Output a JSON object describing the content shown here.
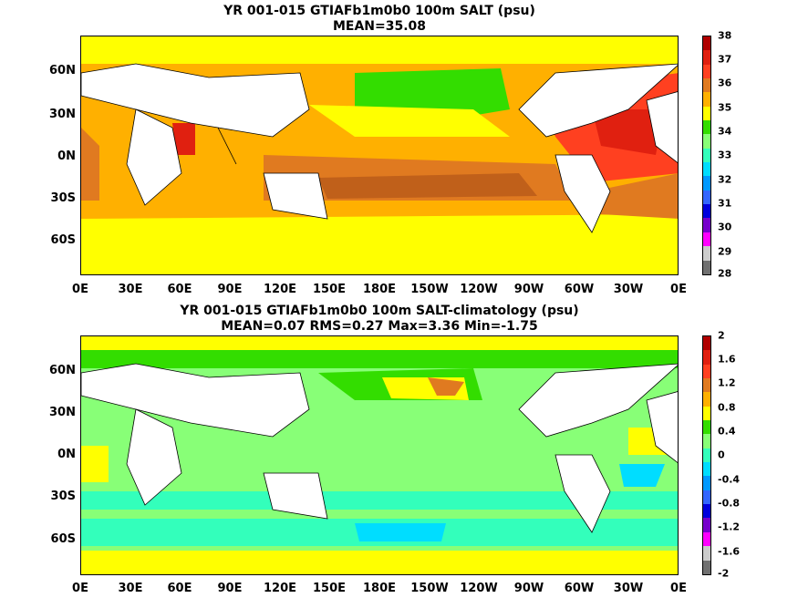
{
  "panel1": {
    "title_line1": "YR 001-015 GTIAFb1m0b0 100m SALT (psu)",
    "title_line2": "MEAN=35.08",
    "colorbar": {
      "labels": [
        "38",
        "37",
        "36",
        "35",
        "34",
        "33",
        "32",
        "31",
        "30",
        "29",
        "28"
      ],
      "colors": [
        "#b00000",
        "#e02010",
        "#ff4020",
        "#e07a20",
        "#ffb000",
        "#ffff00",
        "#33dd00",
        "#88ff77",
        "#33ffbb",
        "#00ddff",
        "#0099ff",
        "#3366ff",
        "#0000dd",
        "#7700cc",
        "#ff00ff",
        "#cccccc",
        "#707070"
      ]
    }
  },
  "panel2": {
    "title_line1": "YR 001-015 GTIAFb1m0b0 100m SALT-climatology (psu)",
    "title_line2": "MEAN=0.07   RMS=0.27   Max=3.36   Min=-1.75",
    "colorbar": {
      "labels": [
        "2",
        "1.6",
        "1.2",
        "0.8",
        "0.4",
        "0",
        "-0.4",
        "-0.8",
        "-1.2",
        "-1.6",
        "-2"
      ],
      "colors": [
        "#b00000",
        "#e02010",
        "#ff4020",
        "#e07a20",
        "#ffb000",
        "#ffff00",
        "#33dd00",
        "#88ff77",
        "#33ffbb",
        "#00ddff",
        "#0099ff",
        "#3366ff",
        "#0000dd",
        "#7700cc",
        "#ff00ff",
        "#cccccc",
        "#707070"
      ]
    }
  },
  "axes": {
    "lat_labels": [
      "60N",
      "30N",
      "0N",
      "30S",
      "60S"
    ],
    "lon_labels": [
      "0E",
      "30E",
      "60E",
      "90E",
      "120E",
      "150E",
      "180E",
      "150W",
      "120W",
      "90W",
      "60W",
      "30W",
      "0E"
    ]
  }
}
